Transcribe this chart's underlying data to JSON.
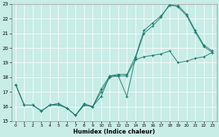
{
  "xlabel": "Humidex (Indice chaleur)",
  "xlim": [
    -0.5,
    23.5
  ],
  "ylim": [
    15,
    23
  ],
  "yticks": [
    15,
    16,
    17,
    18,
    19,
    20,
    21,
    22,
    23
  ],
  "xticks": [
    0,
    1,
    2,
    3,
    4,
    5,
    6,
    7,
    8,
    9,
    10,
    11,
    12,
    13,
    14,
    15,
    16,
    17,
    18,
    19,
    20,
    21,
    22,
    23
  ],
  "background_color": "#c8ece6",
  "grid_color": "#ffffff",
  "line_color": "#1a7a6e",
  "lines": [
    {
      "x": [
        0,
        1,
        2,
        3,
        4,
        5,
        6,
        7,
        8,
        9,
        10,
        11,
        12,
        13,
        14,
        15,
        16,
        17,
        18,
        19,
        20,
        21,
        22,
        23
      ],
      "y": [
        17.5,
        16.1,
        16.1,
        15.7,
        16.1,
        16.1,
        15.9,
        15.4,
        16.2,
        16.0,
        16.7,
        18.1,
        18.1,
        16.7,
        19.3,
        21.0,
        21.5,
        22.1,
        23.0,
        22.8,
        22.2,
        21.1,
        20.1,
        19.7
      ]
    },
    {
      "x": [
        0,
        1,
        2,
        3,
        4,
        5,
        6,
        7,
        8,
        9,
        10,
        11,
        12,
        13,
        14,
        15,
        16,
        17,
        18,
        19,
        20,
        21,
        22,
        23
      ],
      "y": [
        17.5,
        16.1,
        16.1,
        15.7,
        16.1,
        16.2,
        15.9,
        15.4,
        16.1,
        16.0,
        17.2,
        18.1,
        18.2,
        18.2,
        19.4,
        21.2,
        21.7,
        22.2,
        22.9,
        22.9,
        22.3,
        21.2,
        20.2,
        19.8
      ]
    },
    {
      "x": [
        0,
        1,
        2,
        3,
        4,
        5,
        6,
        7,
        8,
        9,
        10,
        11,
        12,
        13,
        14,
        15,
        16,
        17,
        18,
        19,
        20,
        21,
        22,
        23
      ],
      "y": [
        17.5,
        16.1,
        16.1,
        15.7,
        16.1,
        16.2,
        15.9,
        15.4,
        16.1,
        16.0,
        17.0,
        18.0,
        18.1,
        18.1,
        19.2,
        19.4,
        19.5,
        19.6,
        19.8,
        19.0,
        19.1,
        19.3,
        19.4,
        19.7
      ]
    }
  ]
}
